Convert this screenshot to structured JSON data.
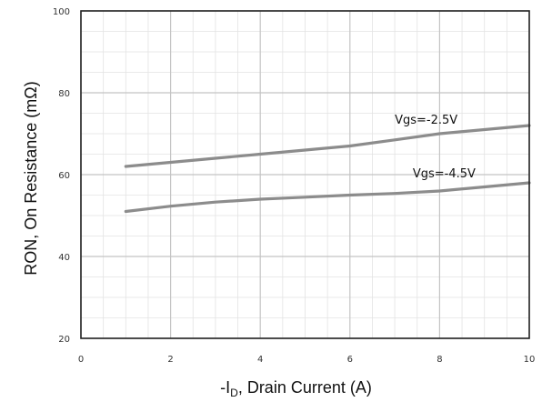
{
  "chart_data": {
    "type": "line",
    "title": "",
    "xlabel": "-I",
    "xlabel_sub": "D",
    "xlabel_rest": ", Drain Current (A)",
    "ylabel": "RON, On Resistance (mΩ)",
    "xlim": [
      0,
      10
    ],
    "ylim": [
      20,
      100
    ],
    "x_ticks": [
      0,
      2,
      4,
      6,
      8,
      10
    ],
    "y_ticks": [
      20,
      40,
      60,
      80,
      100
    ],
    "x_minor_step": 0.5,
    "y_minor_step": 5,
    "grid": true,
    "line_color": "#8c8c8c",
    "series": [
      {
        "name": "Vgs=-2.5V",
        "x": [
          1,
          2,
          3,
          4,
          5,
          6,
          7,
          8,
          9,
          10
        ],
        "values": [
          62,
          63,
          64,
          65,
          66,
          67,
          68.5,
          70,
          71,
          72
        ],
        "label_at": [
          7.0,
          72.5
        ]
      },
      {
        "name": "Vgs=-4.5V",
        "x": [
          1,
          2,
          3,
          4,
          5,
          6,
          7,
          8,
          9,
          10
        ],
        "values": [
          51,
          52.3,
          53.3,
          54,
          54.5,
          55,
          55.4,
          56,
          57,
          58
        ],
        "label_at": [
          7.4,
          59.3
        ]
      }
    ]
  }
}
